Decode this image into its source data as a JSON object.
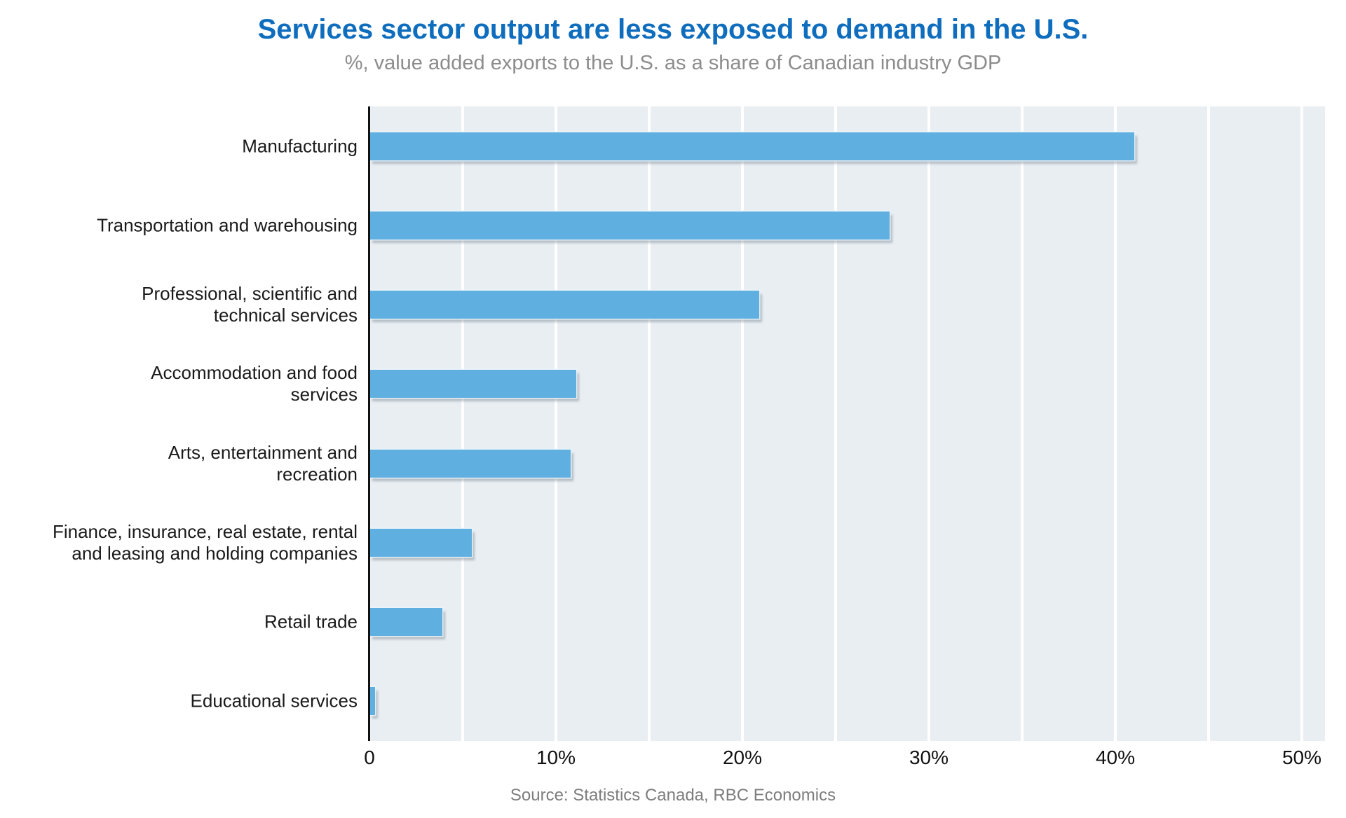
{
  "header": {
    "title": "Services sector output are less exposed to demand in the U.S.",
    "subtitle": "%, value added exports to the U.S. as a share of Canadian industry GDP"
  },
  "footer": {
    "source": "Source: Statistics Canada, RBC Economics"
  },
  "chart_data": {
    "type": "bar",
    "orientation": "horizontal",
    "title": "Services sector output are less exposed to demand in the U.S.",
    "subtitle": "%, value added exports to the U.S. as a share of Canadian industry GDP",
    "categories": [
      "Manufacturing",
      "Transportation and warehousing",
      "Professional, scientific and\ntechnical services",
      "Accommodation and food\nservices",
      "Arts, entertainment and\nrecreation",
      "Finance, insurance, real estate, rental\nand leasing and holding companies",
      "Retail trade",
      "Educational services"
    ],
    "values": [
      41.0,
      27.9,
      20.9,
      11.1,
      10.8,
      5.5,
      3.9,
      0.3
    ],
    "xlabel": "",
    "ylabel": "",
    "xlim": [
      0,
      51.2
    ],
    "x_tick_labels": [
      "0",
      "10%",
      "20%",
      "30%",
      "40%",
      "50%"
    ],
    "x_tick_values": [
      0,
      10,
      20,
      30,
      40,
      50
    ],
    "x_gridline_step": 5,
    "grid": "vertical-white",
    "legend": false,
    "source": "Source: Statistics Canada, RBC Economics",
    "colors": {
      "bar": "#5fb0e0",
      "title": "#0f6dbe",
      "subtitle": "#8c8c8c",
      "plot_background": "#e9eef2",
      "gridline": "#ffffff",
      "axis": "#111111",
      "tick_label": "#111111",
      "category_label": "#1a1a1a",
      "source_text": "#7d7d7d"
    }
  }
}
